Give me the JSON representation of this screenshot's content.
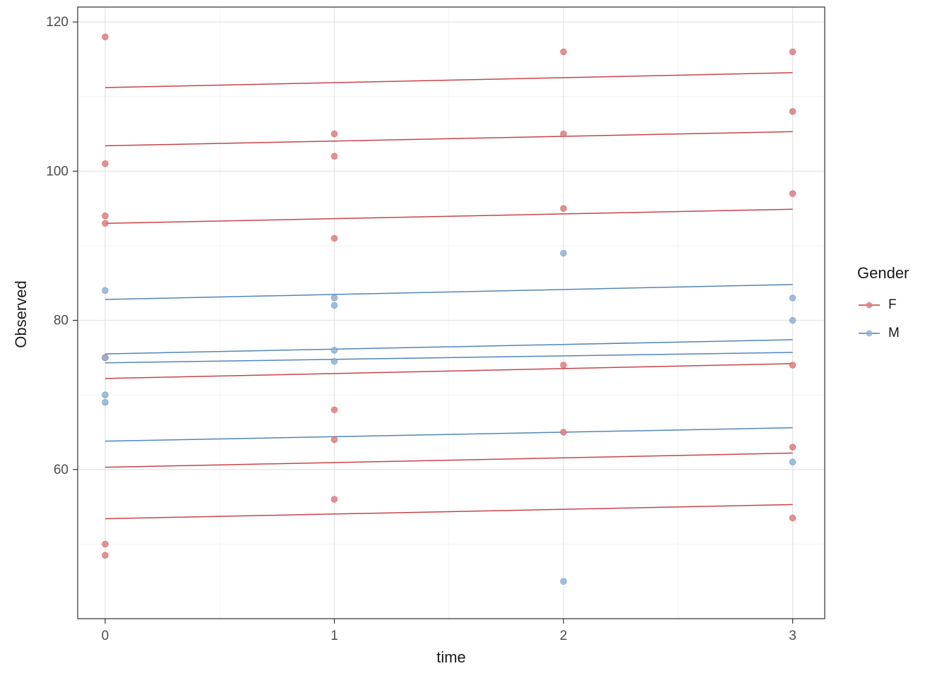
{
  "figure": {
    "background": "#ffffff"
  },
  "chart_data": {
    "type": "scatter",
    "title": "",
    "xlabel": "time",
    "ylabel": "Observed",
    "xlim": [
      -0.12,
      3.14
    ],
    "ylim": [
      40,
      122
    ],
    "x_ticks": [
      0,
      1,
      2,
      3
    ],
    "y_ticks": [
      60,
      80,
      100,
      120
    ],
    "x_minor": [
      0.5,
      1.5,
      2.5
    ],
    "y_minor": [
      50,
      70,
      90,
      110
    ],
    "panel_bg": "#ffffff",
    "grid_major": "#e3e3e3",
    "grid_minor": "#f2f2f2",
    "border_color": "#2f2f2f",
    "tick_color": "#333333",
    "tick_label_color": "#4d4d4d",
    "axis_title_color": "#1a1a1a",
    "line_x": [
      0,
      3
    ],
    "groups": [
      {
        "name": "F",
        "line_color": "#C23B3F",
        "point_color": "#E07C80"
      },
      {
        "name": "M",
        "line_color": "#4A7EB4",
        "point_color": "#8FB2D4"
      }
    ],
    "points": {
      "F": [
        [
          0,
          118
        ],
        [
          0,
          101
        ],
        [
          0,
          94
        ],
        [
          0,
          93
        ],
        [
          0,
          75
        ],
        [
          0,
          50
        ],
        [
          0,
          48.5
        ],
        [
          1,
          105
        ],
        [
          1,
          102
        ],
        [
          1,
          91
        ],
        [
          1,
          68
        ],
        [
          1,
          64
        ],
        [
          1,
          56
        ],
        [
          2,
          116
        ],
        [
          2,
          105
        ],
        [
          2,
          95
        ],
        [
          2,
          74
        ],
        [
          2,
          65
        ],
        [
          3,
          116
        ],
        [
          3,
          108
        ],
        [
          3,
          97
        ],
        [
          3,
          74
        ],
        [
          3,
          63
        ],
        [
          3,
          53.5
        ]
      ],
      "M": [
        [
          0,
          84
        ],
        [
          0,
          75
        ],
        [
          0,
          70
        ],
        [
          0,
          69
        ],
        [
          1,
          83
        ],
        [
          1,
          82
        ],
        [
          1,
          76
        ],
        [
          1,
          74.5
        ],
        [
          2,
          89
        ],
        [
          2,
          45
        ],
        [
          3,
          83
        ],
        [
          3,
          80
        ],
        [
          3,
          61
        ]
      ]
    },
    "lines": {
      "F": [
        [
          111.2,
          113.2
        ],
        [
          103.4,
          105.3
        ],
        [
          93.0,
          94.9
        ],
        [
          72.2,
          74.2
        ],
        [
          60.3,
          62.2
        ],
        [
          53.4,
          55.3
        ]
      ],
      "M": [
        [
          82.8,
          84.8
        ],
        [
          75.5,
          77.4
        ],
        [
          74.3,
          75.7
        ],
        [
          63.8,
          65.6
        ]
      ]
    }
  },
  "legend": {
    "title": "Gender",
    "entries": [
      {
        "label": "F"
      },
      {
        "label": "M"
      }
    ]
  }
}
